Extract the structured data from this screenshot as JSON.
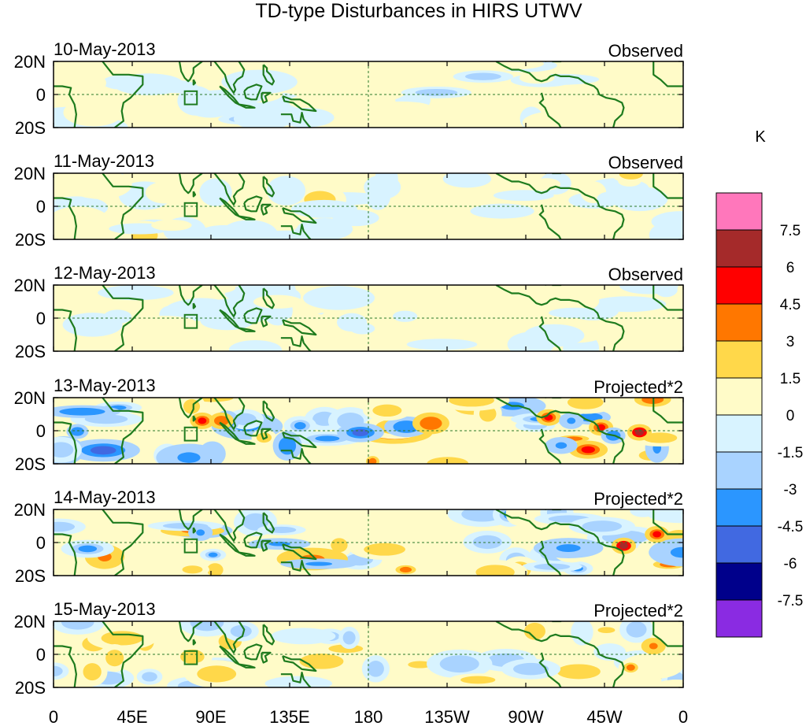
{
  "chart_data": {
    "type": "heatmap",
    "title": "TD-type Disturbances in HIRS UTWV",
    "xlabel": "",
    "ylabel": "",
    "x_ticks": [
      "0",
      "45E",
      "90E",
      "135E",
      "180",
      "135W",
      "90W",
      "45W",
      "0"
    ],
    "x_range": [
      0,
      360
    ],
    "y_ticks": [
      "20N",
      "0",
      "20S"
    ],
    "y_range": [
      -20,
      20
    ],
    "colorbar": {
      "unit": "K",
      "levels": [
        "7.5",
        "6",
        "4.5",
        "3",
        "1.5",
        "0",
        "-1.5",
        "-3",
        "-4.5",
        "-6",
        "-7.5"
      ],
      "colors": [
        "#ff77bb",
        "#a52a2a",
        "#ff0000",
        "#ff7700",
        "#ffd84a",
        "#fffbc8",
        "#d8f3ff",
        "#a9d3ff",
        "#2b96ff",
        "#4169e1",
        "#00008b",
        "#8a2be2"
      ]
    },
    "panels": [
      {
        "date": "10-May-2013",
        "label": "Observed",
        "amp": 1.0,
        "seed": 11
      },
      {
        "date": "11-May-2013",
        "label": "Observed",
        "amp": 1.0,
        "seed": 23
      },
      {
        "date": "12-May-2013",
        "label": "Observed",
        "amp": 0.9,
        "seed": 37
      },
      {
        "date": "13-May-2013",
        "label": "Projected*2",
        "amp": 2.3,
        "seed": 41
      },
      {
        "date": "14-May-2013",
        "label": "Projected*2",
        "amp": 1.9,
        "seed": 53
      },
      {
        "date": "15-May-2013",
        "label": "Projected*2",
        "amp": 1.5,
        "seed": 67
      }
    ],
    "features": [
      {
        "panel": 3,
        "lon": 85,
        "lat": 6,
        "value": 5.5
      },
      {
        "panel": 3,
        "lon": 96,
        "lat": 6,
        "value": 4.0
      },
      {
        "panel": 3,
        "lon": 283,
        "lat": 8,
        "value": 5.0
      },
      {
        "panel": 3,
        "lon": 313,
        "lat": 2,
        "value": 4.5
      },
      {
        "panel": 3,
        "lon": 335,
        "lat": -1,
        "value": 6.5
      },
      {
        "panel": 3,
        "lon": 320,
        "lat": -3,
        "value": -4.5
      },
      {
        "panel": 3,
        "lon": 296,
        "lat": 6,
        "value": -3.5
      },
      {
        "panel": 4,
        "lon": 345,
        "lat": 5,
        "value": 5.0
      },
      {
        "panel": 4,
        "lon": 326,
        "lat": -2,
        "value": 6.5
      },
      {
        "panel": 4,
        "lon": 84,
        "lat": 6,
        "value": -3.5
      },
      {
        "panel": 5,
        "lon": 343,
        "lat": 5,
        "value": 3.5
      },
      {
        "panel": 5,
        "lon": 330,
        "lat": -8,
        "value": 3.0
      }
    ]
  }
}
